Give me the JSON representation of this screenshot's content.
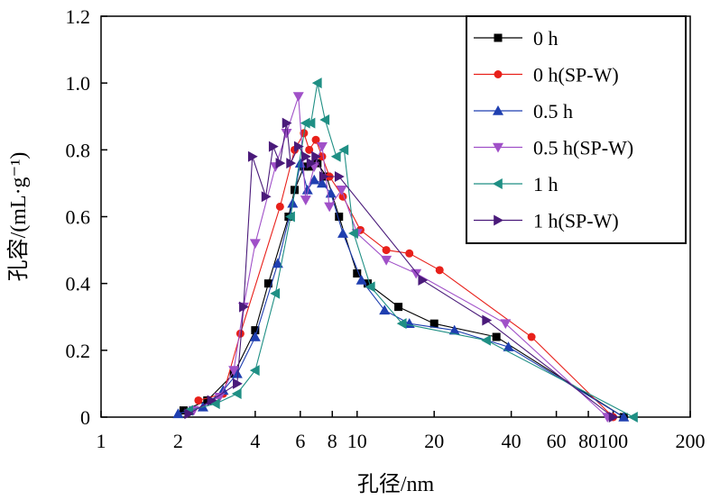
{
  "chart_data": {
    "type": "line",
    "xlabel": "孔径/nm",
    "ylabel": "孔容/(mL·g⁻¹)",
    "x_scale": "log",
    "xlim": [
      1,
      200
    ],
    "ylim": [
      0,
      1.2
    ],
    "x_ticks": [
      1,
      2,
      4,
      6,
      8,
      10,
      20,
      40,
      60,
      80,
      100,
      200
    ],
    "x_tick_labels": [
      "1",
      "2",
      "4",
      "6",
      "8",
      "10",
      "20",
      "40",
      "60",
      "80",
      "100",
      "200"
    ],
    "y_ticks": [
      0,
      0.2,
      0.4,
      0.6,
      0.8,
      1.0,
      1.2
    ],
    "y_tick_labels": [
      "0",
      "0.2",
      "0.4",
      "0.6",
      "0.8",
      "1.0",
      "1.2"
    ],
    "grid": false,
    "legend_position": "top-right",
    "series": [
      {
        "name": "0 h",
        "color": "#000000",
        "marker": "square",
        "x": [
          2.1,
          2.6,
          3.3,
          4.0,
          4.5,
          5.4,
          5.7,
          6.2,
          6.6,
          7.0,
          7.6,
          8.5,
          10.0,
          11.0,
          14.5,
          20.0,
          35.0,
          110.0
        ],
        "y": [
          0.02,
          0.05,
          0.13,
          0.26,
          0.4,
          0.6,
          0.68,
          0.75,
          0.75,
          0.76,
          0.72,
          0.6,
          0.43,
          0.4,
          0.33,
          0.28,
          0.24,
          0.0
        ]
      },
      {
        "name": "0 h(SP-W)",
        "color": "#e8201a",
        "marker": "circle",
        "x": [
          2.4,
          3.0,
          3.5,
          5.0,
          5.7,
          6.2,
          6.5,
          6.9,
          7.3,
          7.8,
          8.8,
          10.3,
          13.0,
          16.0,
          21.0,
          48.0,
          100.0
        ],
        "y": [
          0.05,
          0.07,
          0.25,
          0.63,
          0.8,
          0.85,
          0.8,
          0.83,
          0.78,
          0.72,
          0.66,
          0.56,
          0.5,
          0.49,
          0.44,
          0.24,
          0.0
        ]
      },
      {
        "name": "0.5 h",
        "color": "#1f3fb0",
        "marker": "triangle-up",
        "x": [
          2.0,
          2.5,
          3.0,
          3.4,
          4.0,
          4.9,
          5.6,
          6.0,
          6.4,
          6.8,
          7.3,
          7.9,
          8.8,
          10.4,
          12.8,
          16.0,
          24.0,
          39.0,
          110.0
        ],
        "y": [
          0.01,
          0.03,
          0.08,
          0.13,
          0.24,
          0.46,
          0.64,
          0.76,
          0.68,
          0.71,
          0.7,
          0.67,
          0.55,
          0.41,
          0.32,
          0.28,
          0.26,
          0.21,
          0.0
        ]
      },
      {
        "name": "0.5 h(SP-W)",
        "color": "#a050c8",
        "marker": "triangle-down",
        "x": [
          2.3,
          2.9,
          3.3,
          3.6,
          4.0,
          4.8,
          5.3,
          5.9,
          6.3,
          6.8,
          7.3,
          7.8,
          8.7,
          10.0,
          13.0,
          17.0,
          38.0,
          95.0
        ],
        "y": [
          0.02,
          0.06,
          0.14,
          0.33,
          0.52,
          0.75,
          0.85,
          0.96,
          0.65,
          0.75,
          0.81,
          0.63,
          0.68,
          0.55,
          0.47,
          0.43,
          0.28,
          0.0
        ]
      },
      {
        "name": "1 h",
        "color": "#1f8f84",
        "marker": "triangle-left",
        "x": [
          2.2,
          2.8,
          3.4,
          4.0,
          4.8,
          5.5,
          6.3,
          6.6,
          7.0,
          7.5,
          8.3,
          8.9,
          9.7,
          11.3,
          15.0,
          32.0,
          120.0
        ],
        "y": [
          0.02,
          0.04,
          0.07,
          0.14,
          0.37,
          0.6,
          0.88,
          0.88,
          1.0,
          0.89,
          0.78,
          0.8,
          0.55,
          0.39,
          0.28,
          0.23,
          0.0
        ]
      },
      {
        "name": "1 h(SP-W)",
        "color": "#4a1a7a",
        "marker": "triangle-right",
        "x": [
          2.2,
          2.7,
          3.4,
          3.6,
          3.9,
          4.4,
          4.7,
          5.0,
          5.3,
          5.5,
          5.9,
          6.3,
          6.6,
          6.9,
          7.4,
          8.5,
          18.0,
          32.0,
          100.0
        ],
        "y": [
          0.01,
          0.05,
          0.1,
          0.33,
          0.78,
          0.66,
          0.81,
          0.76,
          0.88,
          0.76,
          0.81,
          0.78,
          0.76,
          0.78,
          0.72,
          0.72,
          0.41,
          0.29,
          0.0
        ]
      }
    ]
  }
}
